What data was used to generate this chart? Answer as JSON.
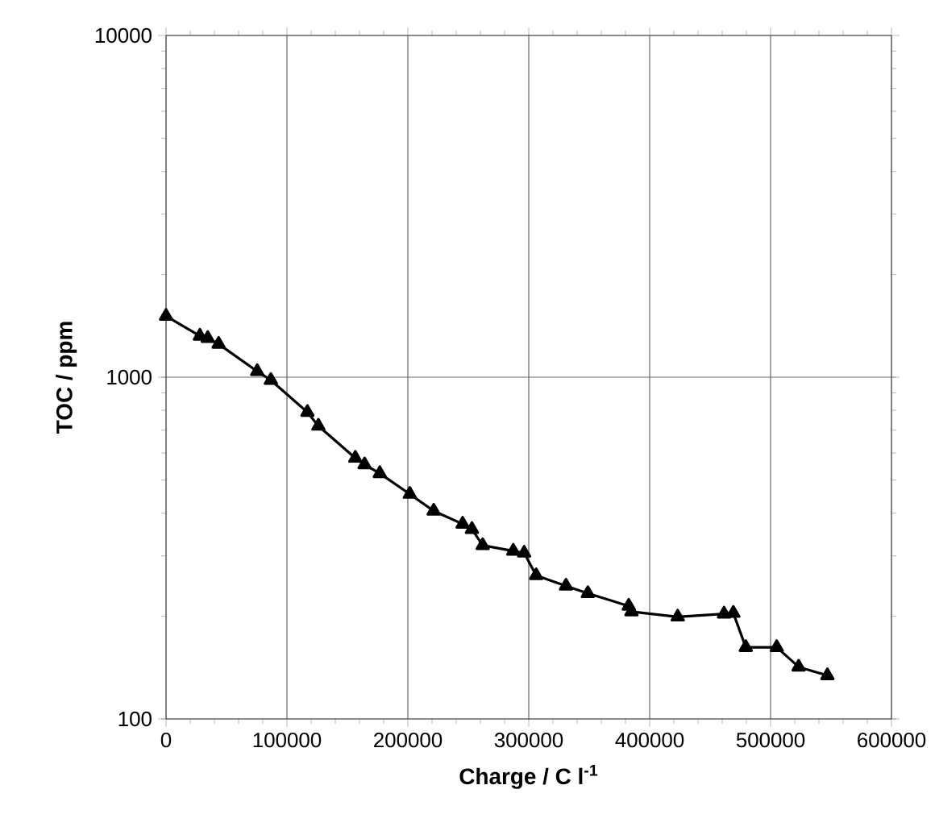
{
  "chart_data": {
    "type": "line",
    "xlabel": "Charge / C l$^{-1}$",
    "ylabel": "TOC / ppm",
    "x": [
      0,
      28000,
      34500,
      43500,
      75400,
      86700,
      116900,
      126000,
      156500,
      164200,
      176800,
      201600,
      221400,
      245300,
      253000,
      261900,
      287200,
      296200,
      306100,
      330800,
      348900,
      382700,
      384900,
      423200,
      461500,
      469200,
      479500,
      505100,
      523200,
      547000
    ],
    "series": [
      {
        "color": "#000000",
        "values": [
          1510,
          1320,
          1300,
          1250,
          1040,
          980,
          790,
          720,
          580,
          555,
          523,
          455,
          406,
          372,
          359,
          322,
          310,
          306,
          263,
          245,
          233,
          214,
          206,
          199,
          203,
          204,
          162,
          162,
          142,
          134
        ]
      }
    ],
    "xlim": [
      0,
      600000
    ],
    "ylim": [
      100,
      10000
    ],
    "xticks": [
      0,
      100000,
      200000,
      300000,
      400000,
      500000,
      600000
    ],
    "yticks": [
      100,
      1000,
      10000
    ],
    "log": "y",
    "grid": true,
    "marker": "triangle",
    "line_style": "solid"
  }
}
